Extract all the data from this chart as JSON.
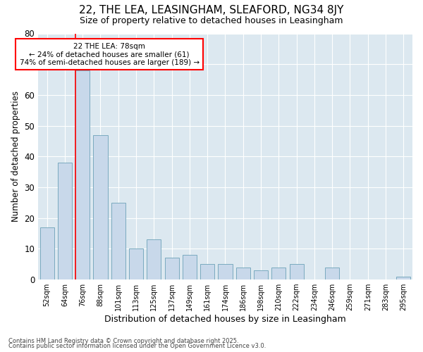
{
  "title1": "22, THE LEA, LEASINGHAM, SLEAFORD, NG34 8JY",
  "title2": "Size of property relative to detached houses in Leasingham",
  "xlabel": "Distribution of detached houses by size in Leasingham",
  "ylabel": "Number of detached properties",
  "categories": [
    "52sqm",
    "64sqm",
    "76sqm",
    "88sqm",
    "101sqm",
    "113sqm",
    "125sqm",
    "137sqm",
    "149sqm",
    "161sqm",
    "174sqm",
    "186sqm",
    "198sqm",
    "210sqm",
    "222sqm",
    "234sqm",
    "246sqm",
    "259sqm",
    "271sqm",
    "283sqm",
    "295sqm"
  ],
  "values": [
    17,
    38,
    68,
    47,
    25,
    10,
    13,
    7,
    8,
    5,
    5,
    4,
    3,
    4,
    5,
    0,
    4,
    0,
    0,
    0,
    1
  ],
  "bar_color": "#c8d8ea",
  "bar_edge_color": "#7aaabf",
  "red_line_bar_index": 2,
  "annotation_line1": "22 THE LEA: 78sqm",
  "annotation_line2": "← 24% of detached houses are smaller (61)",
  "annotation_line3": "74% of semi-detached houses are larger (189) →",
  "annotation_box_facecolor": "white",
  "annotation_box_edgecolor": "red",
  "ylim": [
    0,
    80
  ],
  "yticks": [
    0,
    10,
    20,
    30,
    40,
    50,
    60,
    70,
    80
  ],
  "background_color": "#dce8f0",
  "grid_color": "white",
  "footer1": "Contains HM Land Registry data © Crown copyright and database right 2025.",
  "footer2": "Contains public sector information licensed under the Open Government Licence v3.0."
}
